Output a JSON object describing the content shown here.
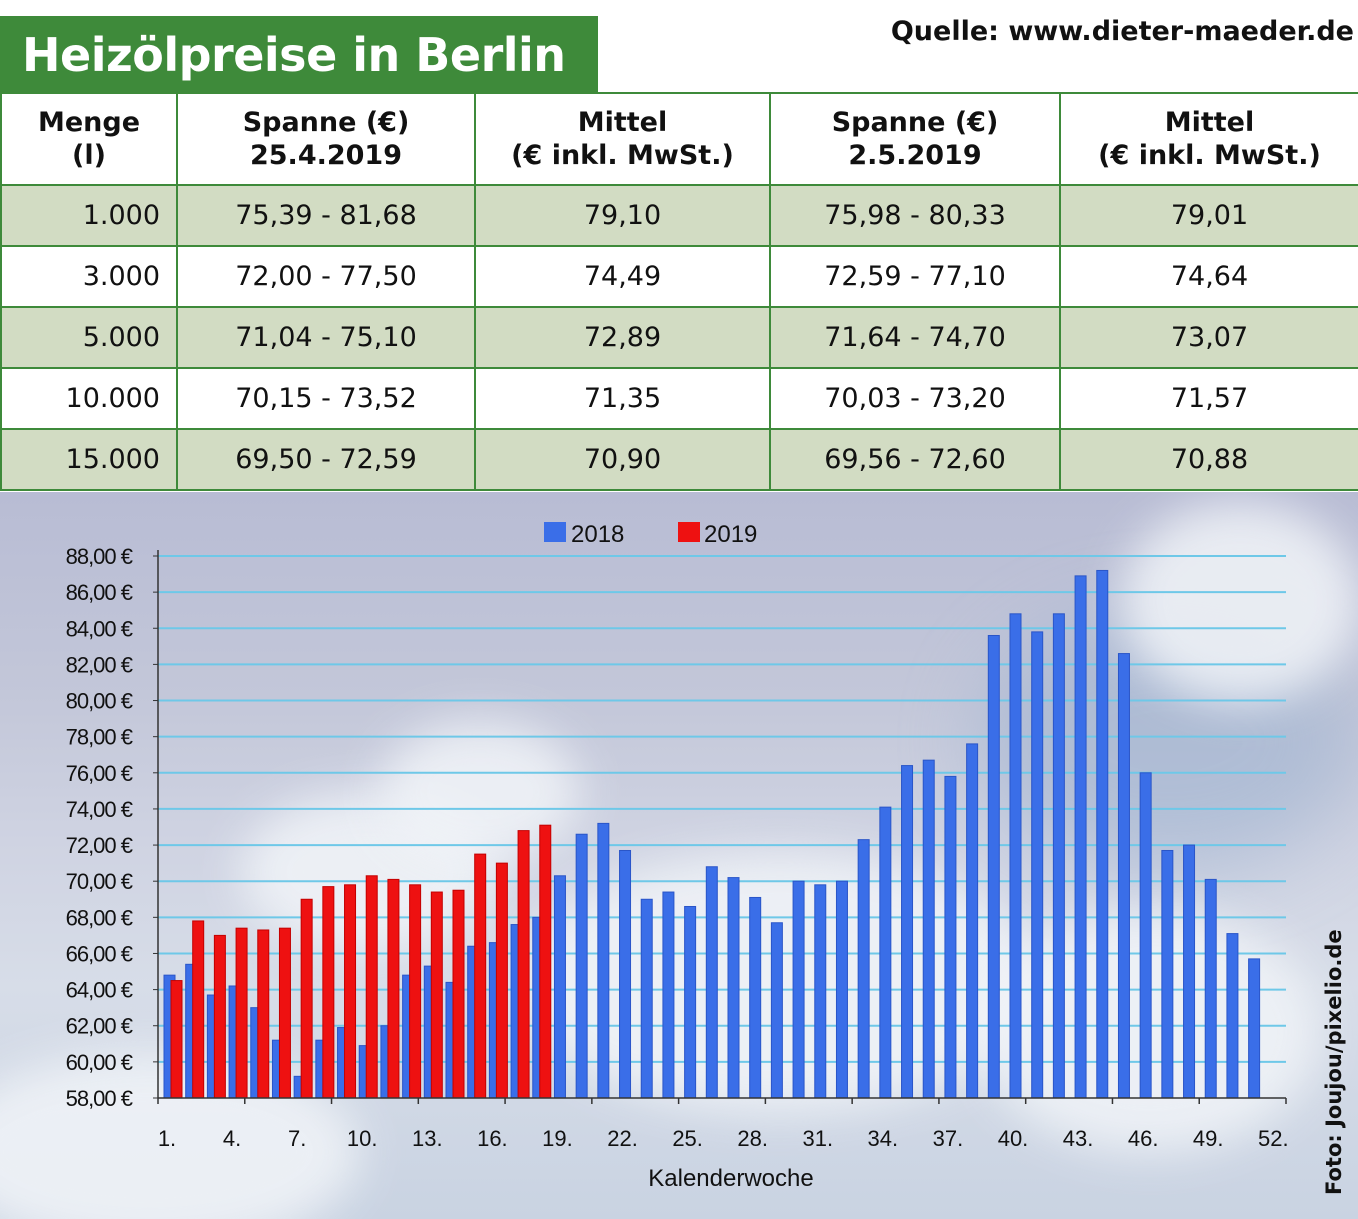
{
  "header": {
    "title": "Heizölpreise in Berlin",
    "source": "Quelle: www.dieter-maeder.de"
  },
  "table": {
    "headers": [
      [
        "Menge",
        "(l)"
      ],
      [
        "Spanne (€)",
        "25.4.2019"
      ],
      [
        "Mittel",
        "(€ inkl. MwSt.)"
      ],
      [
        "Spanne (€)",
        "2.5.2019"
      ],
      [
        "Mittel",
        "(€ inkl. MwSt.)"
      ]
    ],
    "rows": [
      [
        "1.000",
        "75,39 - 81,68",
        "79,10",
        "75,98 - 80,33",
        "79,01"
      ],
      [
        "3.000",
        "72,00 - 77,50",
        "74,49",
        "72,59 - 77,10",
        "74,64"
      ],
      [
        "5.000",
        "71,04 - 75,10",
        "72,89",
        "71,64 - 74,70",
        "73,07"
      ],
      [
        "10.000",
        "70,15 - 73,52",
        "71,35",
        "70,03 - 73,20",
        "71,57"
      ],
      [
        "15.000",
        "69,50 - 72,59",
        "70,90",
        "69,56 - 72,60",
        "70,88"
      ]
    ]
  },
  "photo_credit": "Foto: Joujou/pixelio.de",
  "colors": {
    "green": "#3e8a3a",
    "row_shade": "#d2dcc3",
    "series_2018": "#3a6ee8",
    "series_2019": "#ee1111",
    "gridline": "#6ec8e8"
  },
  "chart_data": {
    "type": "bar",
    "xlabel": "Kalenderwoche",
    "ylabel": "",
    "ylim": [
      58,
      88
    ],
    "y_ticks": [
      "58,00 €",
      "60,00 €",
      "62,00 €",
      "64,00 €",
      "66,00 €",
      "68,00 €",
      "70,00 €",
      "72,00 €",
      "74,00 €",
      "76,00 €",
      "78,00 €",
      "80,00 €",
      "82,00 €",
      "84,00 €",
      "86,00 €",
      "88,00 €"
    ],
    "x_ticks": [
      "1.",
      "4.",
      "7.",
      "10.",
      "13.",
      "16.",
      "19.",
      "22.",
      "25.",
      "28.",
      "31.",
      "34.",
      "37.",
      "40.",
      "43.",
      "46.",
      "49.",
      "52."
    ],
    "weeks": [
      1,
      2,
      3,
      4,
      5,
      6,
      7,
      8,
      9,
      10,
      11,
      12,
      13,
      14,
      15,
      16,
      17,
      18,
      19,
      20,
      21,
      22,
      23,
      24,
      25,
      26,
      27,
      28,
      29,
      30,
      31,
      32,
      33,
      34,
      35,
      36,
      37,
      38,
      39,
      40,
      41,
      42,
      43,
      44,
      45,
      46,
      47,
      48,
      49,
      50,
      51,
      52
    ],
    "grid": true,
    "legend_position": "top-center",
    "series": [
      {
        "name": "2018",
        "values": [
          64.8,
          65.4,
          63.7,
          64.2,
          63.0,
          61.2,
          59.2,
          61.2,
          61.9,
          60.9,
          62.0,
          64.8,
          65.3,
          64.4,
          66.4,
          66.6,
          67.6,
          68.0,
          70.3,
          72.6,
          73.2,
          71.7,
          69.0,
          69.4,
          68.6,
          70.8,
          70.2,
          69.1,
          67.7,
          70.0,
          69.8,
          70.0,
          72.3,
          74.1,
          76.4,
          76.7,
          75.8,
          77.6,
          83.6,
          84.8,
          83.8,
          84.8,
          86.9,
          87.2,
          82.6,
          76.0,
          71.7,
          72.0,
          70.1,
          67.1,
          65.7,
          null
        ]
      },
      {
        "name": "2019",
        "values": [
          64.5,
          67.8,
          67.0,
          67.4,
          67.3,
          67.4,
          69.0,
          69.7,
          69.8,
          70.3,
          70.1,
          69.8,
          69.4,
          69.5,
          71.5,
          71.0,
          72.8,
          73.1,
          null,
          null,
          null,
          null,
          null,
          null,
          null,
          null,
          null,
          null,
          null,
          null,
          null,
          null,
          null,
          null,
          null,
          null,
          null,
          null,
          null,
          null,
          null,
          null,
          null,
          null,
          null,
          null,
          null,
          null,
          null,
          null,
          null,
          null
        ]
      }
    ]
  }
}
